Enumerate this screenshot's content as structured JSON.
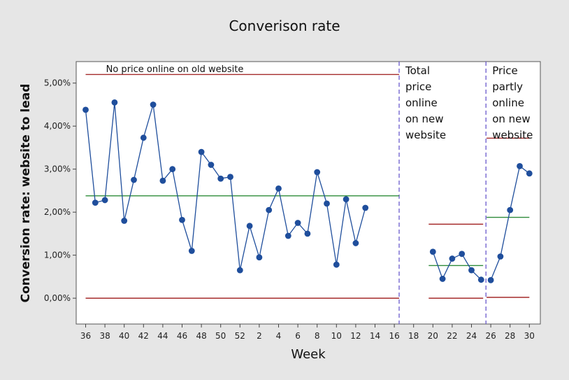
{
  "chart_data": {
    "type": "line",
    "title": "Converison rate",
    "xlabel": "Week",
    "ylabel": "Conversion rate: website to lead",
    "x_ticks": [
      "36",
      "38",
      "40",
      "42",
      "44",
      "46",
      "48",
      "50",
      "52",
      "2",
      "4",
      "6",
      "8",
      "10",
      "12",
      "14",
      "16",
      "18",
      "20",
      "22",
      "24",
      "26",
      "28",
      "30"
    ],
    "y_ticks": [
      "0,00%",
      "1,00%",
      "2,00%",
      "3,00%",
      "4,00%",
      "5,00%"
    ],
    "ylim": [
      -0.6,
      5.5
    ],
    "grid": false,
    "colors": {
      "line": "#1f4e9c",
      "point": "#1f4e9c",
      "center": "#2e8b3a",
      "limit": "#a52a2a",
      "divider": "#6a5acd"
    },
    "phases": [
      {
        "label_lines": [
          "No price online on old website"
        ],
        "weeks": [
          "36",
          "37",
          "38",
          "39",
          "40",
          "41",
          "42",
          "43",
          "44",
          "45",
          "46",
          "47",
          "48",
          "49",
          "50",
          "51",
          "52",
          "1",
          "2",
          "3",
          "4",
          "5",
          "6",
          "7",
          "8",
          "9",
          "10",
          "11",
          "12",
          "13"
        ],
        "values": [
          4.38,
          2.22,
          2.28,
          4.55,
          1.8,
          2.75,
          3.73,
          4.5,
          2.73,
          3.0,
          1.82,
          1.1,
          3.4,
          3.1,
          2.78,
          2.82,
          0.65,
          1.68,
          0.95,
          2.05,
          2.55,
          1.45,
          1.75,
          1.5,
          2.93,
          2.2,
          0.78,
          2.3,
          1.28,
          2.1
        ],
        "center": 2.38,
        "ucl": 5.2,
        "lcl": 0.0
      },
      {
        "label_lines": [
          "Total",
          "price",
          "online",
          "on new",
          "website"
        ],
        "weeks": [
          "20",
          "21",
          "22",
          "23",
          "24",
          "25"
        ],
        "values": [
          1.08,
          0.45,
          0.92,
          1.03,
          0.65,
          0.43
        ],
        "center": 0.76,
        "ucl": 1.72,
        "lcl": 0.0
      },
      {
        "label_lines": [
          "Price",
          "partly",
          "online",
          "on new",
          "website"
        ],
        "weeks": [
          "26",
          "27",
          "28",
          "29",
          "30"
        ],
        "values": [
          0.42,
          0.97,
          2.05,
          3.07,
          2.9
        ],
        "center": 1.88,
        "ucl": 3.72,
        "lcl": 0.02
      }
    ]
  }
}
